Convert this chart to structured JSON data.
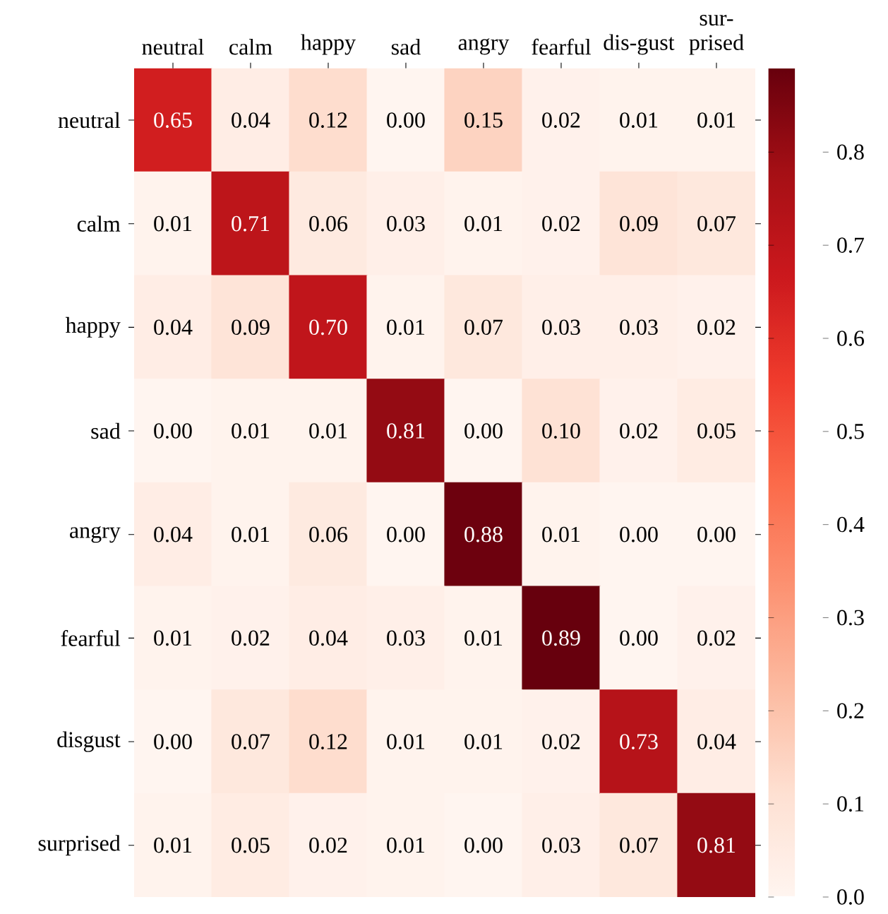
{
  "chart_data": {
    "type": "heatmap",
    "categories": [
      "neutral",
      "calm",
      "happy",
      "sad",
      "angry",
      "fearful",
      "dis-gust",
      "sur-prised"
    ],
    "y_categories": [
      "neutral",
      "calm",
      "happy",
      "sad",
      "angry",
      "fearful",
      "disgust",
      "surprised"
    ],
    "cells": [
      [
        0.65,
        0.04,
        0.12,
        0.0,
        0.15,
        0.02,
        0.01,
        0.01
      ],
      [
        0.01,
        0.71,
        0.06,
        0.03,
        0.01,
        0.02,
        0.09,
        0.07
      ],
      [
        0.04,
        0.09,
        0.7,
        0.01,
        0.07,
        0.03,
        0.03,
        0.02
      ],
      [
        0.0,
        0.01,
        0.01,
        0.81,
        0.0,
        0.1,
        0.02,
        0.05
      ],
      [
        0.04,
        0.01,
        0.06,
        0.0,
        0.88,
        0.01,
        0.0,
        0.0
      ],
      [
        0.01,
        0.02,
        0.04,
        0.03,
        0.01,
        0.89,
        0.0,
        0.02
      ],
      [
        0.0,
        0.07,
        0.12,
        0.01,
        0.01,
        0.02,
        0.73,
        0.04
      ],
      [
        0.01,
        0.05,
        0.02,
        0.01,
        0.0,
        0.03,
        0.07,
        0.81
      ]
    ],
    "cell_labels": [
      [
        "0.65",
        "0.04",
        "0.12",
        "0.00",
        "0.15",
        "0.02",
        "0.01",
        "0.01"
      ],
      [
        "0.01",
        "0.71",
        "0.06",
        "0.03",
        "0.01",
        "0.02",
        "0.09",
        "0.07"
      ],
      [
        "0.04",
        "0.09",
        "0.70",
        "0.01",
        "0.07",
        "0.03",
        "0.03",
        "0.02"
      ],
      [
        "0.00",
        "0.01",
        "0.01",
        "0.81",
        "0.00",
        "0.10",
        "0.02",
        "0.05"
      ],
      [
        "0.04",
        "0.01",
        "0.06",
        "0.00",
        "0.88",
        "0.01",
        "0.00",
        "0.00"
      ],
      [
        "0.01",
        "0.02",
        "0.04",
        "0.03",
        "0.01",
        "0.89",
        "0.00",
        "0.02"
      ],
      [
        "0.00",
        "0.07",
        "0.12",
        "0.01",
        "0.01",
        "0.02",
        "0.73",
        "0.04"
      ],
      [
        "0.01",
        "0.05",
        "0.02",
        "0.01",
        "0.00",
        "0.03",
        "0.07",
        "0.81"
      ]
    ],
    "clim": [
      0,
      0.89
    ],
    "cticks": [
      {
        "value": 0,
        "label": "0.0"
      },
      {
        "value": 0.1,
        "label": "0.1"
      },
      {
        "value": 0.2,
        "label": "0.2"
      },
      {
        "value": 0.3,
        "label": "0.3"
      },
      {
        "value": 0.4,
        "label": "0.4"
      },
      {
        "value": 0.5,
        "label": "0.5"
      },
      {
        "value": 0.6,
        "label": "0.6"
      },
      {
        "value": 0.7,
        "label": "0.7"
      },
      {
        "value": 0.8,
        "label": "0.8"
      }
    ]
  }
}
